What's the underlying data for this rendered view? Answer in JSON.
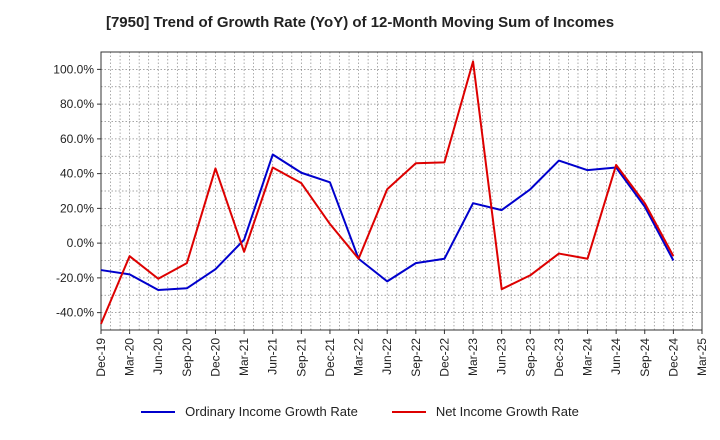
{
  "chart_data": {
    "type": "line",
    "title": "[7950]  Trend of Growth Rate (YoY) of 12-Month Moving Sum of Incomes",
    "xlabel": "",
    "ylabel": "",
    "x": [
      "Dec-19",
      "Mar-20",
      "Jun-20",
      "Sep-20",
      "Dec-20",
      "Mar-21",
      "Jun-21",
      "Sep-21",
      "Dec-21",
      "Mar-22",
      "Jun-22",
      "Sep-22",
      "Dec-22",
      "Mar-23",
      "Jun-23",
      "Sep-23",
      "Dec-23",
      "Mar-24",
      "Jun-24",
      "Sep-24",
      "Dec-24",
      "Mar-25"
    ],
    "ylim": [
      -50,
      110
    ],
    "yticks": [
      -40,
      -20,
      0,
      20,
      40,
      60,
      80,
      100
    ],
    "ytick_labels": [
      "-40.0%",
      "-20.0%",
      "0.0%",
      "20.0%",
      "40.0%",
      "60.0%",
      "80.0%",
      "100.0%"
    ],
    "grid": true,
    "legend_position": "bottom",
    "series": [
      {
        "name": "Ordinary Income Growth Rate",
        "color": "#0000cc",
        "points": [
          [
            "Dec-19",
            -15.5
          ],
          [
            "Mar-20",
            -18
          ],
          [
            "Jun-20",
            -27
          ],
          [
            "Sep-20",
            -26
          ],
          [
            "Dec-20",
            -15
          ],
          [
            "Mar-21",
            2
          ],
          [
            "Jun-21",
            51
          ],
          [
            "Sep-21",
            40.5
          ],
          [
            "Dec-21",
            35
          ],
          [
            "Mar-22",
            -9
          ],
          [
            "Jun-22",
            -22
          ],
          [
            "Sep-22",
            -11.5
          ],
          [
            "Dec-22",
            -9
          ],
          [
            "Mar-23",
            23
          ],
          [
            "Jun-23",
            19
          ],
          [
            "Sep-23",
            31
          ],
          [
            "Dec-23",
            47.5
          ],
          [
            "Mar-24",
            42
          ],
          [
            "Jun-24",
            43.5
          ],
          [
            "Sep-24",
            21
          ],
          [
            "Dec-24",
            -10
          ]
        ]
      },
      {
        "name": "Net Income Growth Rate",
        "color": "#dd0000",
        "points": [
          [
            "Dec-19",
            -46.5
          ],
          [
            "Mar-20",
            -7.5
          ],
          [
            "Jun-20",
            -20.5
          ],
          [
            "Sep-20",
            -11.5
          ],
          [
            "Dec-20",
            43
          ],
          [
            "Mar-21",
            -5
          ],
          [
            "Jun-21",
            43.5
          ],
          [
            "Sep-21",
            34.5
          ],
          [
            "Dec-21",
            11
          ],
          [
            "Mar-22",
            -9
          ],
          [
            "Jun-22",
            31
          ],
          [
            "Sep-22",
            46
          ],
          [
            "Dec-22",
            46.5
          ],
          [
            "Mar-23",
            104.5
          ],
          [
            "Jun-23",
            -26.5
          ],
          [
            "Sep-23",
            -18.5
          ],
          [
            "Dec-23",
            -6
          ],
          [
            "Mar-24",
            -9
          ],
          [
            "Jun-24",
            45
          ],
          [
            "Sep-24",
            23
          ],
          [
            "Dec-24",
            -7.5
          ]
        ]
      }
    ]
  }
}
